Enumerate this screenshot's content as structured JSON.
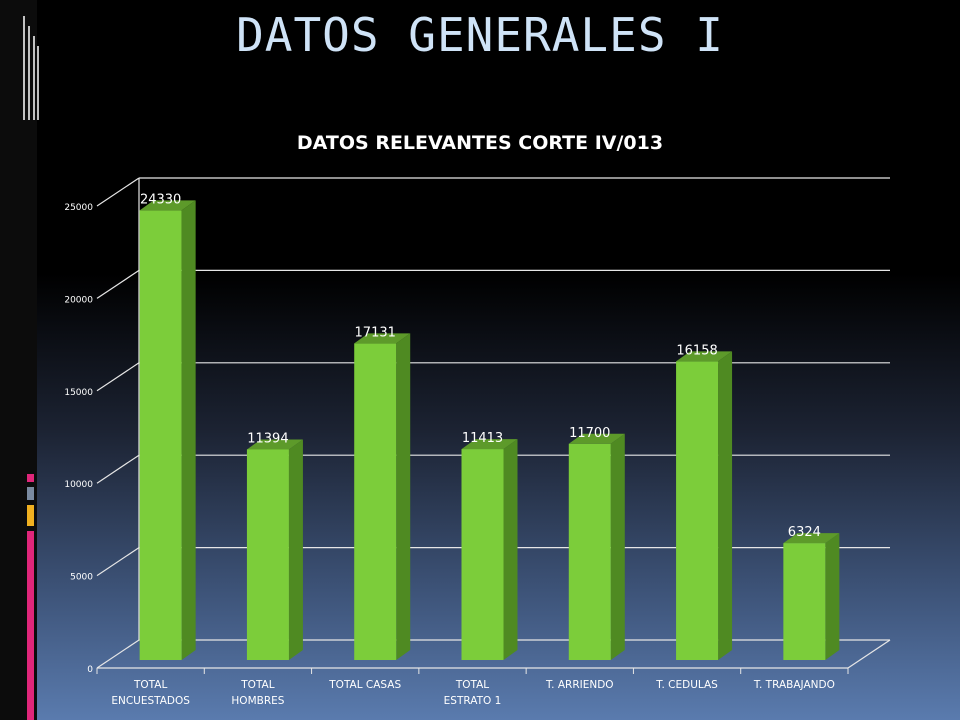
{
  "slide": {
    "title": "DATOS GENERALES I"
  },
  "colors": {
    "bar_front": "#7ccd3a",
    "bar_side": "#4f8a22",
    "bar_top": "#5d9a2a",
    "grid": "#e6e6e6",
    "title_text": "#cfe3f7",
    "accent_pink": "#e0267a",
    "accent_gray": "#7a8aa0",
    "accent_gold": "#f0b020"
  },
  "chart_data": {
    "type": "bar",
    "title": "DATOS RELEVANTES CORTE IV/013",
    "xlabel": "",
    "ylabel": "",
    "categories": [
      "TOTAL ENCUESTADOS",
      "TOTAL HOMBRES",
      "TOTAL CASAS",
      "TOTAL ESTRATO 1",
      "T. ARRIENDO",
      "T. CEDULAS",
      "T. TRABAJANDO"
    ],
    "category_lines": [
      [
        "TOTAL",
        "ENCUESTADOS"
      ],
      [
        "TOTAL",
        "HOMBRES"
      ],
      [
        "TOTAL CASAS"
      ],
      [
        "TOTAL",
        "ESTRATO 1"
      ],
      [
        "T. ARRIENDO"
      ],
      [
        "T. CEDULAS"
      ],
      [
        "T. TRABAJANDO"
      ]
    ],
    "values": [
      24330,
      11394,
      17131,
      11413,
      11700,
      16158,
      6324
    ],
    "data_labels": [
      "24330",
      "11394",
      "17131",
      "11413",
      "11700",
      "16158",
      "6324"
    ],
    "ylim": [
      0,
      25000
    ],
    "yticks": [
      0,
      5000,
      10000,
      15000,
      20000,
      25000
    ],
    "ytick_labels": [
      "0",
      "5000",
      "10000",
      "15000",
      "20000",
      "25000"
    ],
    "grid": true,
    "legend": "none",
    "style": "3d-column"
  }
}
